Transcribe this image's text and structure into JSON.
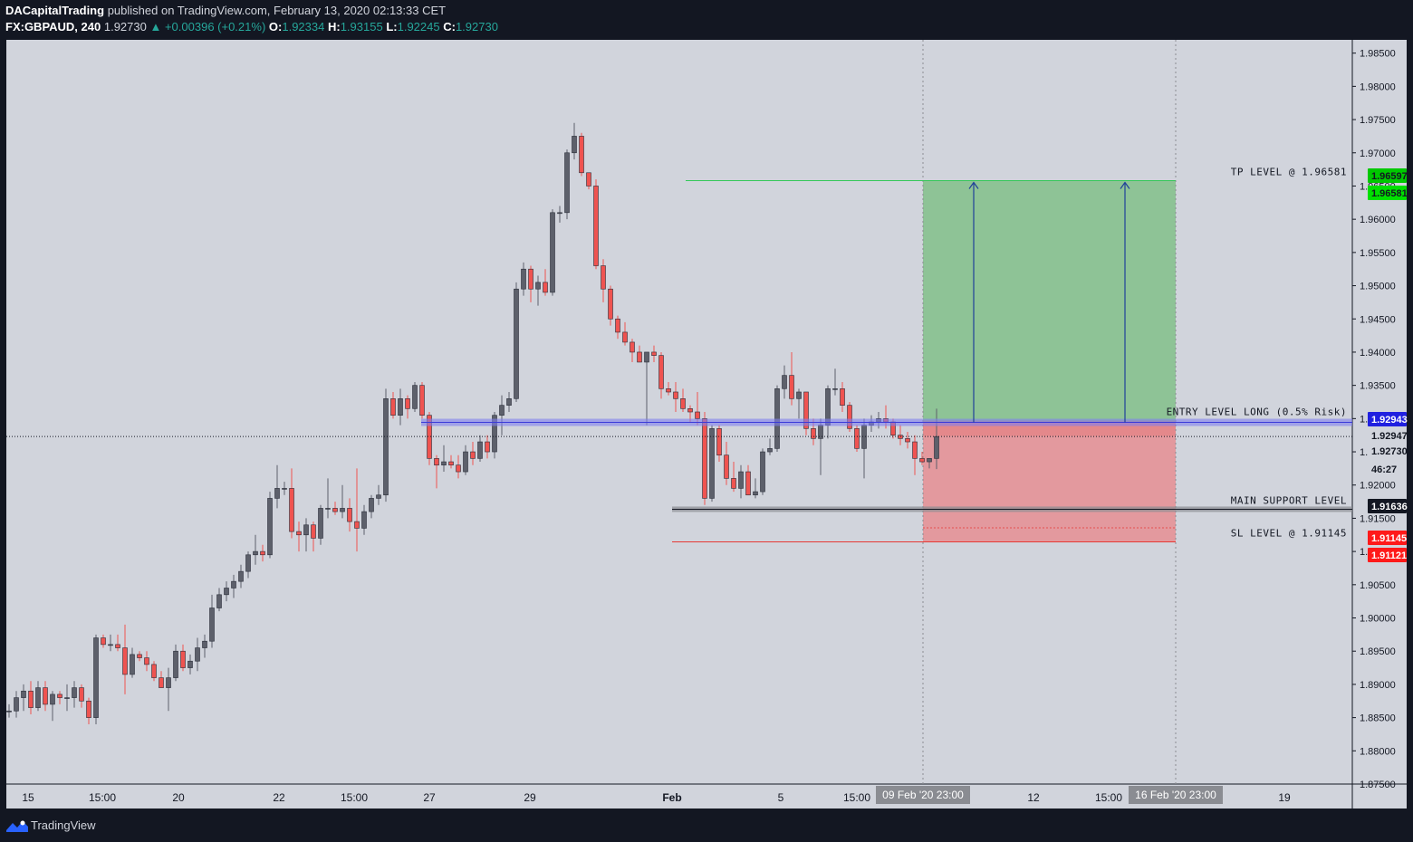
{
  "header": {
    "author": "DACapitalTrading",
    "published": "published on TradingView.com, February 13, 2020 02:13:33 CET",
    "symbol": "FX:GBPAUD, 240",
    "last": "1.92730",
    "change": "▲ +0.00396 (+0.21%)",
    "o_label": "O:",
    "o_val": "1.92334",
    "h_label": "H:",
    "h_val": "1.93155",
    "l_label": "L:",
    "l_val": "1.92245",
    "c_label": "C:",
    "c_val": "1.92730"
  },
  "footer": {
    "brand": "TradingView",
    "logo_icon": "tradingview-logo-icon"
  },
  "annotations": {
    "tp": "TP LEVEL @ 1.96581",
    "entry": "ENTRY LEVEL LONG (0.5% Risk)",
    "support": "MAIN SUPPORT LEVEL",
    "sl": "SL LEVEL @ 1.91145"
  },
  "colors": {
    "up": "#5d606b",
    "down": "#ef5350",
    "profit": "#8ec396",
    "loss": "#e3999e",
    "entry_band": "#7f7fef",
    "support_band": "#8a8c92",
    "tp_line": "#34c759",
    "sl_line": "#e53935",
    "arrow": "#1f3f99",
    "bg": "#d1d4dc",
    "canvas": "#131722"
  },
  "chart_data": {
    "type": "candlestick",
    "symbol": "FX:GBPAUD",
    "interval": "240",
    "ylim": [
      1.875,
      1.987
    ],
    "y_ticks": [
      "1.98500",
      "1.98000",
      "1.97500",
      "1.97000",
      "1.96500",
      "1.96000",
      "1.95500",
      "1.95000",
      "1.94500",
      "1.94000",
      "1.93500",
      "1.93000",
      "1.92500",
      "1.92000",
      "1.91500",
      "1.91000",
      "1.90500",
      "1.90000",
      "1.89500",
      "1.89000",
      "1.88500",
      "1.88000",
      "1.87500"
    ],
    "x_ticks": [
      "15",
      "15:00",
      "20",
      "22",
      "15:00",
      "27",
      "29",
      "Feb",
      "5",
      "15:00",
      "12",
      "15:00",
      "19"
    ],
    "range_labels": [
      "09 Feb '20 23:00",
      "16 Feb '20 23:00"
    ],
    "price_tags": [
      {
        "label": "1.96597",
        "color": "#00c800",
        "text": "#131722"
      },
      {
        "label": "1.96581",
        "color": "#00e000",
        "text": "#131722"
      },
      {
        "label": "1.92943",
        "color": "#2020e0",
        "text": "#ffffff"
      },
      {
        "label": "1.92947",
        "color": "#d1d4dc",
        "text": "#131722"
      },
      {
        "label": "1.92730",
        "color": "#d1d4dc",
        "text": "#131722"
      },
      {
        "label": "46:27",
        "color": "#d1d4dc",
        "text": "#131722"
      },
      {
        "label": "1.91636",
        "color": "#131722",
        "text": "#ffffff"
      },
      {
        "label": "1.91145",
        "color": "#ff1a1a",
        "text": "#ffffff"
      },
      {
        "label": "1.91121",
        "color": "#ff1a1a",
        "text": "#ffffff"
      }
    ],
    "levels": {
      "tp": 1.96581,
      "entry": 1.92943,
      "support": 1.91636,
      "sl": 1.91145,
      "last": 1.9273
    },
    "candles": [
      [
        1.886,
        1.887,
        1.885,
        1.886
      ],
      [
        1.886,
        1.889,
        1.885,
        1.888
      ],
      [
        1.888,
        1.89,
        1.886,
        1.889
      ],
      [
        1.889,
        1.8905,
        1.8855,
        1.8865
      ],
      [
        1.8865,
        1.8905,
        1.886,
        1.8895
      ],
      [
        1.8895,
        1.8905,
        1.886,
        1.887
      ],
      [
        1.887,
        1.889,
        1.8845,
        1.8885
      ],
      [
        1.8885,
        1.889,
        1.887,
        1.888
      ],
      [
        1.888,
        1.89,
        1.886,
        1.888
      ],
      [
        1.888,
        1.8905,
        1.8865,
        1.8895
      ],
      [
        1.8895,
        1.89,
        1.8865,
        1.8875
      ],
      [
        1.8875,
        1.888,
        1.884,
        1.885
      ],
      [
        1.885,
        1.8975,
        1.884,
        1.897
      ],
      [
        1.897,
        1.8975,
        1.8955,
        1.896
      ],
      [
        1.896,
        1.8975,
        1.895,
        1.896
      ],
      [
        1.896,
        1.8975,
        1.895,
        1.8955
      ],
      [
        1.8955,
        1.899,
        1.8885,
        1.8915
      ],
      [
        1.8915,
        1.8955,
        1.891,
        1.8945
      ],
      [
        1.8945,
        1.895,
        1.8935,
        1.894
      ],
      [
        1.894,
        1.895,
        1.892,
        1.893
      ],
      [
        1.893,
        1.8935,
        1.8905,
        1.891
      ],
      [
        1.891,
        1.892,
        1.8895,
        1.8895
      ],
      [
        1.8895,
        1.8925,
        1.886,
        1.891
      ],
      [
        1.891,
        1.896,
        1.8905,
        1.895
      ],
      [
        1.895,
        1.896,
        1.892,
        1.8925
      ],
      [
        1.8925,
        1.8945,
        1.8915,
        1.8935
      ],
      [
        1.8935,
        1.897,
        1.892,
        1.8955
      ],
      [
        1.8955,
        1.8975,
        1.894,
        1.8965
      ],
      [
        1.8965,
        1.9035,
        1.8955,
        1.9015
      ],
      [
        1.9015,
        1.9045,
        1.901,
        1.9035
      ],
      [
        1.9035,
        1.9055,
        1.9025,
        1.9045
      ],
      [
        1.9045,
        1.9065,
        1.903,
        1.9055
      ],
      [
        1.9055,
        1.908,
        1.9045,
        1.907
      ],
      [
        1.907,
        1.91,
        1.906,
        1.9095
      ],
      [
        1.9095,
        1.9125,
        1.908,
        1.91
      ],
      [
        1.91,
        1.911,
        1.9085,
        1.9095
      ],
      [
        1.9095,
        1.919,
        1.909,
        1.918
      ],
      [
        1.918,
        1.923,
        1.9165,
        1.9195
      ],
      [
        1.9195,
        1.9205,
        1.9185,
        1.9195
      ],
      [
        1.9195,
        1.9225,
        1.912,
        1.913
      ],
      [
        1.913,
        1.9145,
        1.91,
        1.9125
      ],
      [
        1.9125,
        1.915,
        1.91,
        1.914
      ],
      [
        1.914,
        1.9145,
        1.91,
        1.912
      ],
      [
        1.912,
        1.917,
        1.911,
        1.9165
      ],
      [
        1.9165,
        1.921,
        1.915,
        1.9165
      ],
      [
        1.9165,
        1.9175,
        1.9155,
        1.916
      ],
      [
        1.916,
        1.92,
        1.915,
        1.9165
      ],
      [
        1.9165,
        1.918,
        1.913,
        1.9145
      ],
      [
        1.9145,
        1.9225,
        1.91,
        1.9135
      ],
      [
        1.9135,
        1.917,
        1.9125,
        1.916
      ],
      [
        1.916,
        1.9185,
        1.915,
        1.918
      ],
      [
        1.918,
        1.92,
        1.917,
        1.9185
      ],
      [
        1.9185,
        1.9345,
        1.9175,
        1.933
      ],
      [
        1.933,
        1.934,
        1.93,
        1.9305
      ],
      [
        1.9305,
        1.9345,
        1.929,
        1.933
      ],
      [
        1.933,
        1.9335,
        1.93,
        1.9315
      ],
      [
        1.9315,
        1.9355,
        1.931,
        1.935
      ],
      [
        1.935,
        1.9355,
        1.93,
        1.9305
      ],
      [
        1.9305,
        1.931,
        1.923,
        1.924
      ],
      [
        1.924,
        1.9245,
        1.9195,
        1.923
      ],
      [
        1.923,
        1.926,
        1.922,
        1.9235
      ],
      [
        1.9235,
        1.9245,
        1.9225,
        1.923
      ],
      [
        1.923,
        1.9245,
        1.921,
        1.922
      ],
      [
        1.922,
        1.926,
        1.9215,
        1.925
      ],
      [
        1.925,
        1.9265,
        1.923,
        1.924
      ],
      [
        1.924,
        1.9275,
        1.9235,
        1.9265
      ],
      [
        1.9265,
        1.9275,
        1.924,
        1.925
      ],
      [
        1.925,
        1.931,
        1.924,
        1.9305
      ],
      [
        1.9305,
        1.9335,
        1.9275,
        1.932
      ],
      [
        1.932,
        1.934,
        1.931,
        1.933
      ],
      [
        1.933,
        1.9505,
        1.9325,
        1.9495
      ],
      [
        1.9495,
        1.9535,
        1.9485,
        1.9525
      ],
      [
        1.9525,
        1.953,
        1.9475,
        1.9495
      ],
      [
        1.9495,
        1.9515,
        1.947,
        1.9505
      ],
      [
        1.9505,
        1.9525,
        1.9485,
        1.949
      ],
      [
        1.949,
        1.9615,
        1.9485,
        1.961
      ],
      [
        1.961,
        1.962,
        1.9595,
        1.961
      ],
      [
        1.961,
        1.9705,
        1.96,
        1.97
      ],
      [
        1.97,
        1.9745,
        1.969,
        1.9725
      ],
      [
        1.9725,
        1.973,
        1.9665,
        1.967
      ],
      [
        1.967,
        1.967,
        1.9645,
        1.965
      ],
      [
        1.965,
        1.966,
        1.9525,
        1.953
      ],
      [
        1.953,
        1.954,
        1.9475,
        1.9495
      ],
      [
        1.9495,
        1.95,
        1.944,
        1.945
      ],
      [
        1.945,
        1.9455,
        1.942,
        1.943
      ],
      [
        1.943,
        1.9445,
        1.941,
        1.9415
      ],
      [
        1.9415,
        1.942,
        1.9385,
        1.94
      ],
      [
        1.94,
        1.941,
        1.9385,
        1.9385
      ],
      [
        1.9385,
        1.94,
        1.929,
        1.94
      ],
      [
        1.94,
        1.941,
        1.9385,
        1.9395
      ],
      [
        1.9395,
        1.94,
        1.933,
        1.9345
      ],
      [
        1.9345,
        1.9355,
        1.9335,
        1.934
      ],
      [
        1.934,
        1.9355,
        1.931,
        1.933
      ],
      [
        1.933,
        1.9345,
        1.931,
        1.9315
      ],
      [
        1.9315,
        1.932,
        1.9295,
        1.931
      ],
      [
        1.931,
        1.934,
        1.929,
        1.93
      ],
      [
        1.93,
        1.931,
        1.917,
        1.918
      ],
      [
        1.918,
        1.929,
        1.9175,
        1.9285
      ],
      [
        1.9285,
        1.929,
        1.9235,
        1.9245
      ],
      [
        1.9245,
        1.9265,
        1.92,
        1.921
      ],
      [
        1.921,
        1.9235,
        1.919,
        1.9195
      ],
      [
        1.9195,
        1.923,
        1.918,
        1.922
      ],
      [
        1.922,
        1.923,
        1.919,
        1.9185
      ],
      [
        1.9185,
        1.921,
        1.918,
        1.919
      ],
      [
        1.919,
        1.9255,
        1.9185,
        1.925
      ],
      [
        1.925,
        1.927,
        1.9245,
        1.9255
      ],
      [
        1.9255,
        1.935,
        1.925,
        1.9345
      ],
      [
        1.9345,
        1.938,
        1.933,
        1.9365
      ],
      [
        1.9365,
        1.94,
        1.932,
        1.933
      ],
      [
        1.933,
        1.9345,
        1.93,
        1.934
      ],
      [
        1.934,
        1.934,
        1.9275,
        1.9285
      ],
      [
        1.9285,
        1.93,
        1.926,
        1.927
      ],
      [
        1.927,
        1.93,
        1.9215,
        1.929
      ],
      [
        1.929,
        1.935,
        1.927,
        1.9345
      ],
      [
        1.9345,
        1.9375,
        1.9335,
        1.9345
      ],
      [
        1.9345,
        1.9355,
        1.931,
        1.932
      ],
      [
        1.932,
        1.9325,
        1.928,
        1.9285
      ],
      [
        1.9285,
        1.929,
        1.925,
        1.9255
      ],
      [
        1.9255,
        1.93,
        1.921,
        1.929
      ],
      [
        1.929,
        1.9305,
        1.928,
        1.9295
      ],
      [
        1.9295,
        1.931,
        1.9285,
        1.93
      ],
      [
        1.93,
        1.932,
        1.9285,
        1.9295
      ],
      [
        1.9295,
        1.93,
        1.927,
        1.9275
      ],
      [
        1.9275,
        1.929,
        1.926,
        1.927
      ],
      [
        1.927,
        1.928,
        1.9255,
        1.9265
      ],
      [
        1.9265,
        1.9275,
        1.9215,
        1.924
      ],
      [
        1.924,
        1.925,
        1.923,
        1.9235
      ],
      [
        1.9235,
        1.924,
        1.9225,
        1.924
      ],
      [
        1.924,
        1.9315,
        1.9224,
        1.9273
      ]
    ]
  }
}
